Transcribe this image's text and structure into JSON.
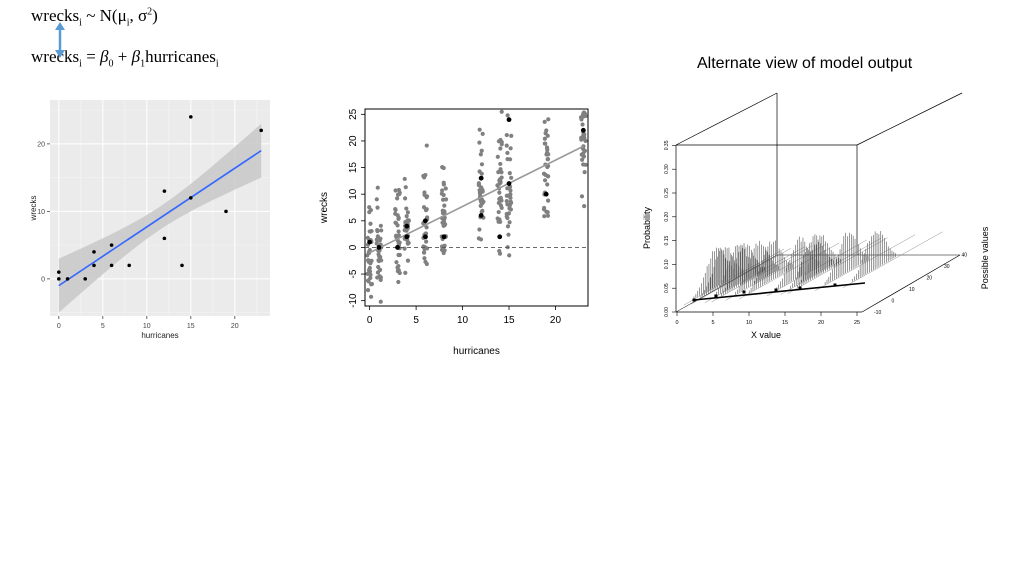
{
  "equations": {
    "likelihood": {
      "lhs": "wrecks",
      "sub": "i",
      "tilde": " ~ N(μ",
      "mu_sub": "i",
      "sigma": ", σ",
      "sigma_sup": "2",
      "close": ")"
    },
    "linear": {
      "lhs": "wrecks",
      "sub": "i",
      "eq": " = ",
      "b0": "β",
      "b0_sub": "0",
      "plus": " + ",
      "b1": "β",
      "b1_sub": "1",
      "term": "hurricanes",
      "term_sub": "i"
    }
  },
  "alt_title": "Alternate view of model output",
  "colors": {
    "arrow": "#5b9bd5",
    "fit_line": "#3366ff",
    "ribbon": "#c8c8c8",
    "gray_points": "#808080"
  },
  "chart_data": [
    {
      "type": "scatter",
      "title": "",
      "xlabel": "hurricanes",
      "ylabel": "wrecks",
      "xlim": [
        -1,
        24
      ],
      "ylim": [
        -5.5,
        26.5
      ],
      "xticks": [
        "0",
        "5",
        "10",
        "15",
        "20"
      ],
      "yticks": [
        "0",
        "10",
        "20"
      ],
      "grid": true,
      "points": [
        [
          0,
          1
        ],
        [
          0,
          0
        ],
        [
          1,
          0
        ],
        [
          3,
          0
        ],
        [
          4,
          2
        ],
        [
          4,
          4
        ],
        [
          6,
          5
        ],
        [
          6,
          2
        ],
        [
          8,
          2
        ],
        [
          12,
          13
        ],
        [
          12,
          6
        ],
        [
          14,
          2
        ],
        [
          15,
          24
        ],
        [
          15,
          12
        ],
        [
          19,
          10
        ],
        [
          23,
          22
        ]
      ],
      "fit": {
        "x": [
          0,
          23
        ],
        "y": [
          -1,
          19
        ]
      },
      "ribbon": {
        "x": [
          0,
          23
        ],
        "lower": [
          -5,
          13
        ],
        "upper": [
          3,
          25
        ]
      }
    },
    {
      "type": "scatter",
      "title": "",
      "xlabel": "hurricanes",
      "ylabel": "wrecks",
      "xlim": [
        -0.5,
        23.5
      ],
      "ylim": [
        -11,
        26
      ],
      "xticks": [
        "0",
        "5",
        "10",
        "15",
        "20"
      ],
      "yticks": [
        "-10",
        "-5",
        "0",
        "5",
        "10",
        "15",
        "20",
        "25"
      ],
      "grid": false,
      "reference_line": 0,
      "observed": [
        [
          0,
          1
        ],
        [
          1,
          0
        ],
        [
          3,
          0
        ],
        [
          4,
          2
        ],
        [
          4,
          4
        ],
        [
          6,
          5
        ],
        [
          6,
          2
        ],
        [
          8,
          2
        ],
        [
          12,
          13
        ],
        [
          12,
          6
        ],
        [
          14,
          2
        ],
        [
          15,
          24
        ],
        [
          15,
          12
        ],
        [
          19,
          10
        ],
        [
          23,
          22
        ]
      ],
      "fit": {
        "x": [
          0,
          23
        ],
        "y": [
          -1,
          19
        ]
      },
      "posterior_columns": [
        0,
        1,
        3,
        4,
        6,
        8,
        12,
        14,
        15,
        19,
        23
      ]
    },
    {
      "type": "area",
      "title": "",
      "xlabel": "X value",
      "ylabel": "Probability",
      "zlabel": "Possible values",
      "xticks": [
        "0",
        "5",
        "10",
        "15",
        "20",
        "25"
      ],
      "yticks": [
        "0.00",
        "0.05",
        "0.10",
        "0.15",
        "0.20",
        "0.25",
        "0.30",
        "0.35"
      ],
      "zticks": [
        "-10",
        "0",
        "10",
        "20",
        "30",
        "40"
      ],
      "x_values": [
        0,
        1,
        3,
        4,
        6,
        8,
        12,
        14,
        15,
        19,
        23
      ]
    }
  ]
}
